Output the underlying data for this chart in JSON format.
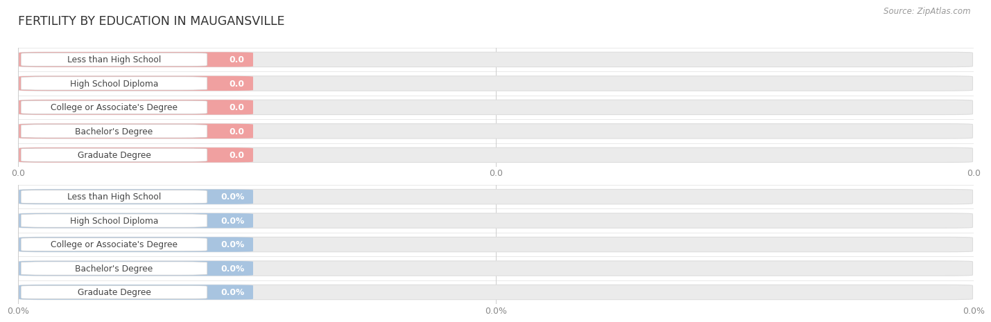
{
  "title": "FERTILITY BY EDUCATION IN MAUGANSVILLE",
  "source": "Source: ZipAtlas.com",
  "categories": [
    "Less than High School",
    "High School Diploma",
    "College or Associate's Degree",
    "Bachelor's Degree",
    "Graduate Degree"
  ],
  "top_values": [
    0.0,
    0.0,
    0.0,
    0.0,
    0.0
  ],
  "bottom_values": [
    0.0,
    0.0,
    0.0,
    0.0,
    0.0
  ],
  "top_bar_color": "#F0A0A0",
  "top_pill_outline": "#E89090",
  "bottom_bar_color": "#A8C4E0",
  "bottom_pill_outline": "#90B4D8",
  "bar_bg_color": "#EBEBEB",
  "bar_bg_outline": "#DDDDDD",
  "pill_bg_color": "#FFFFFF",
  "value_text_color": "#FFFFFF",
  "label_text_color": "#444444",
  "title_color": "#333333",
  "source_color": "#999999",
  "background_color": "#FFFFFF",
  "xtick_top_labels": [
    "0.0",
    "0.0",
    "0.0"
  ],
  "xtick_bottom_labels": [
    "0.0%",
    "0.0%",
    "0.0%"
  ]
}
